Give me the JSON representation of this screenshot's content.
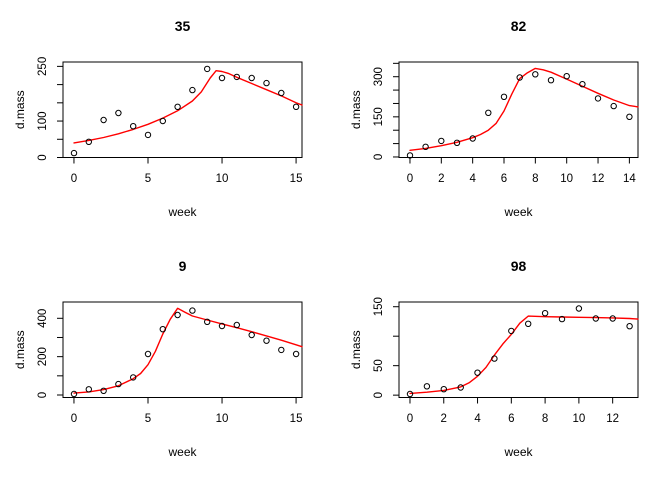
{
  "figure": {
    "background": "#ffffff",
    "frame_color": "#000000",
    "point_color": "#000000",
    "fit_line_color": "#ff0000",
    "description": "2x2 grid of R scatter plots of dry mass over weeks with red fitted growth curves"
  },
  "chart_data": [
    {
      "type": "scatter",
      "title": "35",
      "xlabel": "week",
      "ylabel": "d.mass",
      "xlim": [
        -0.74,
        15.4
      ],
      "ylim": [
        0,
        262
      ],
      "xticks": [
        0,
        5,
        10,
        15
      ],
      "xtick_labels": [
        "0",
        "5",
        "10",
        "15"
      ],
      "yticks": [
        0,
        50,
        100,
        150,
        200,
        250
      ],
      "ytick_labels": [
        "0",
        "",
        "100",
        "",
        "",
        "250"
      ],
      "grid": false,
      "x": [
        0,
        1,
        2,
        3,
        4,
        5,
        6,
        7,
        8,
        9,
        10,
        11,
        12,
        13,
        14,
        15
      ],
      "y": [
        12,
        43,
        103,
        122,
        86,
        62,
        100,
        139,
        185,
        243,
        218,
        221,
        218,
        204,
        177,
        139
      ],
      "fit_x": [
        0,
        1,
        2,
        3,
        4,
        5,
        6,
        7,
        8,
        8.6,
        9.2,
        9.6,
        10,
        10.4,
        11,
        12,
        13,
        14,
        15,
        15.4
      ],
      "fit_y": [
        40,
        47,
        55,
        65,
        77,
        91,
        108,
        128,
        155,
        180,
        218,
        238,
        236,
        231,
        220,
        203,
        186,
        169,
        150,
        144
      ]
    },
    {
      "type": "scatter",
      "title": "82",
      "xlabel": "week",
      "ylabel": "d.mass",
      "xlim": [
        -0.7,
        14.55
      ],
      "ylim": [
        -2,
        355
      ],
      "xticks": [
        0,
        2,
        4,
        6,
        8,
        10,
        12,
        14
      ],
      "xtick_labels": [
        "0",
        "2",
        "4",
        "6",
        "8",
        "10",
        "12",
        "14"
      ],
      "yticks": [
        0,
        50,
        100,
        150,
        200,
        250,
        300,
        350
      ],
      "ytick_labels": [
        "0",
        "",
        "",
        "150",
        "",
        "",
        "300",
        ""
      ],
      "grid": false,
      "x": [
        0,
        1,
        2,
        3,
        4,
        5,
        6,
        7,
        8,
        9,
        10,
        11,
        12,
        13,
        14
      ],
      "y": [
        6,
        38,
        60,
        53,
        69,
        165,
        225,
        297,
        309,
        287,
        302,
        272,
        219,
        190,
        150
      ],
      "fit_x": [
        0,
        1,
        2,
        3,
        4,
        4.5,
        5,
        5.5,
        6,
        6.5,
        7,
        7.5,
        8,
        8.5,
        9,
        10,
        11,
        12,
        13,
        14,
        14.55
      ],
      "fit_y": [
        25,
        32,
        42,
        55,
        72,
        84,
        100,
        126,
        172,
        235,
        293,
        315,
        331,
        326,
        317,
        291,
        264,
        238,
        213,
        192,
        187
      ]
    },
    {
      "type": "scatter",
      "title": "9",
      "xlabel": "week",
      "ylabel": "d.mass",
      "xlim": [
        -0.74,
        15.4
      ],
      "ylim": [
        -13,
        485
      ],
      "xticks": [
        0,
        5,
        10,
        15
      ],
      "xtick_labels": [
        "0",
        "5",
        "10",
        "15"
      ],
      "yticks": [
        0,
        100,
        200,
        300,
        400
      ],
      "ytick_labels": [
        "0",
        "",
        "200",
        "",
        "400"
      ],
      "grid": false,
      "x": [
        0,
        1,
        2,
        3,
        4,
        5,
        6,
        7,
        8,
        9,
        10,
        11,
        12,
        13,
        14,
        15
      ],
      "y": [
        5,
        30,
        22,
        57,
        92,
        214,
        343,
        417,
        440,
        382,
        360,
        365,
        313,
        283,
        235,
        214
      ],
      "fit_x": [
        0,
        1,
        2,
        3,
        4,
        4.5,
        5,
        5.5,
        6,
        6.5,
        7,
        7.5,
        8,
        9,
        10,
        11,
        12,
        13,
        14,
        15,
        15.4
      ],
      "fit_y": [
        10,
        16,
        28,
        48,
        85,
        112,
        158,
        228,
        318,
        395,
        452,
        432,
        412,
        391,
        371,
        351,
        330,
        308,
        286,
        262,
        252
      ]
    },
    {
      "type": "scatter",
      "title": "98",
      "xlabel": "week",
      "ylabel": "d.mass",
      "xlim": [
        -0.65,
        13.5
      ],
      "ylim": [
        -4,
        158
      ],
      "xticks": [
        0,
        2,
        4,
        6,
        8,
        10,
        12
      ],
      "xtick_labels": [
        "0",
        "2",
        "4",
        "6",
        "8",
        "10",
        "12"
      ],
      "yticks": [
        0,
        50,
        100,
        150
      ],
      "ytick_labels": [
        "0",
        "50",
        "",
        "150"
      ],
      "grid": false,
      "x": [
        0,
        1,
        2,
        3,
        4,
        5,
        6,
        7,
        8,
        9,
        10,
        11,
        12,
        13
      ],
      "y": [
        2,
        15,
        10,
        13,
        38,
        62,
        109,
        121,
        139,
        129,
        147,
        130,
        130,
        117
      ],
      "fit_x": [
        0,
        1,
        2,
        3,
        3.5,
        4,
        4.5,
        5,
        5.5,
        6,
        6.5,
        7,
        8,
        9,
        10,
        11,
        12,
        13,
        13.5
      ],
      "fit_y": [
        3,
        5,
        8,
        14,
        21,
        32,
        47,
        68,
        87,
        103,
        122,
        134,
        133,
        132.5,
        132,
        131.5,
        131,
        130,
        129
      ]
    }
  ]
}
